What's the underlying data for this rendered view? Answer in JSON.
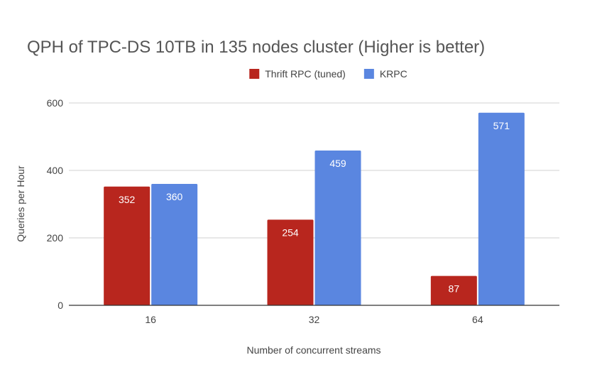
{
  "chart_data": {
    "type": "bar",
    "title": "QPH of TPC-DS 10TB in 135 nodes cluster (Higher is better)",
    "xlabel": "Number of concurrent streams",
    "ylabel": "Queries per Hour",
    "categories": [
      "16",
      "32",
      "64"
    ],
    "series": [
      {
        "name": "Thrift RPC (tuned)",
        "values": [
          352,
          254,
          87
        ],
        "color": "#b8261e"
      },
      {
        "name": "KRPC",
        "values": [
          360,
          459,
          571
        ],
        "color": "#5a86e0"
      }
    ],
    "ylim": [
      0,
      600
    ],
    "yticks": [
      "0",
      "200",
      "400",
      "600"
    ],
    "grid": true,
    "legend_position": "top-center",
    "data_labels": true
  },
  "colors": {
    "text_primary": "#555555",
    "text_secondary": "#444444",
    "gridline": "#d0d0d0",
    "axis": "#333333",
    "label_inside": "#ffffff"
  }
}
